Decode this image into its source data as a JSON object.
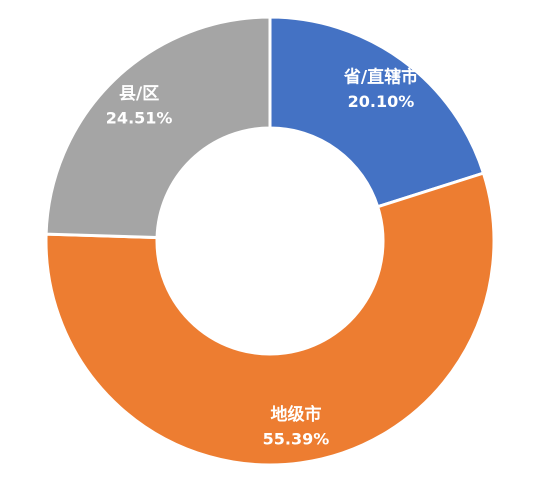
{
  "chart_data": {
    "type": "pie",
    "donut": true,
    "start_angle_deg": 0,
    "direction": "clockwise",
    "slices": [
      {
        "label": "省/直辖市",
        "value": 20.1,
        "display": "20.10%",
        "color": "#4472C4"
      },
      {
        "label": "地级市",
        "value": 55.39,
        "display": "55.39%",
        "color": "#ED7D31"
      },
      {
        "label": "县/区",
        "value": 24.51,
        "display": "24.51%",
        "color": "#A5A5A5"
      }
    ],
    "legend": "none"
  }
}
